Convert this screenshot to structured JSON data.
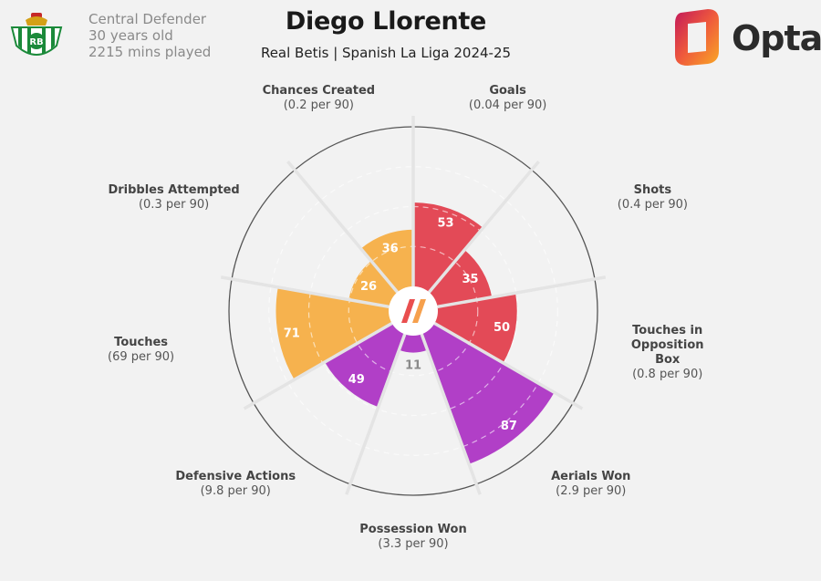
{
  "header": {
    "position": "Central Defender",
    "age": "30 years old",
    "minutes": "2215 mins played",
    "title": "Diego Llorente",
    "subtitle": "Real Betis | Spanish La Liga 2024-25",
    "brand": "Opta"
  },
  "colors": {
    "attacking": "#e34a57",
    "defending": "#b13fc7",
    "possession": "#f6b24e",
    "background": "#f2f2f2",
    "grid": "#dedede"
  },
  "chart_data": {
    "type": "polar-area",
    "title": "Diego Llorente",
    "scale_max": 100,
    "metrics": [
      {
        "name": "Goals",
        "per90": "(0.04 per 90)",
        "percentile": 53,
        "group": "attacking"
      },
      {
        "name": "Shots",
        "per90": "(0.4 per 90)",
        "percentile": 35,
        "group": "attacking"
      },
      {
        "name": "Touches in Opposition Box",
        "per90": "(0.8 per 90)",
        "percentile": 50,
        "group": "attacking"
      },
      {
        "name": "Aerials Won",
        "per90": "(2.9 per 90)",
        "percentile": 87,
        "group": "defending"
      },
      {
        "name": "Possession Won",
        "per90": "(3.3 per 90)",
        "percentile": 11,
        "group": "defending"
      },
      {
        "name": "Defensive Actions",
        "per90": "(9.8 per 90)",
        "percentile": 49,
        "group": "defending"
      },
      {
        "name": "Touches",
        "per90": "(69 per 90)",
        "percentile": 71,
        "group": "possession"
      },
      {
        "name": "Dribbles Attempted",
        "per90": "(0.3 per 90)",
        "percentile": 26,
        "group": "possession"
      },
      {
        "name": "Chances Created",
        "per90": "(0.2 per 90)",
        "percentile": 36,
        "group": "possession"
      }
    ]
  }
}
